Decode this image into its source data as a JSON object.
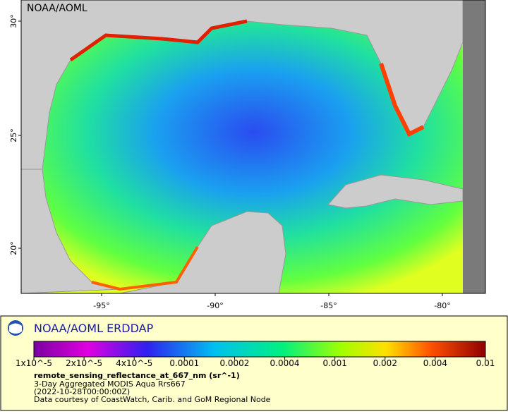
{
  "map": {
    "credit": "NOAA/AOML",
    "lat_labels": [
      "30°",
      "25°",
      "20°"
    ],
    "lon_labels": [
      "-95°",
      "-90°",
      "-85°",
      "-80°"
    ]
  },
  "legend": {
    "title": "NOAA/AOML ERDDAP",
    "colorbar_labels": [
      "1x10^-5",
      "2x10^-5",
      "4x10^-5",
      "0.0001",
      "0.0002",
      "0.0004",
      "0.001",
      "0.002",
      "0.004",
      "0.01"
    ],
    "variable": "remote_sensing_reflectance_at_667_nm (sr^-1)",
    "lines": [
      "3-Day Aggregated MODIS Aqua Rrs667",
      "(2022-10-28T00:00:00Z)",
      "Data courtesy of CoastWatch, Carib. and GoM Regional Node"
    ]
  }
}
